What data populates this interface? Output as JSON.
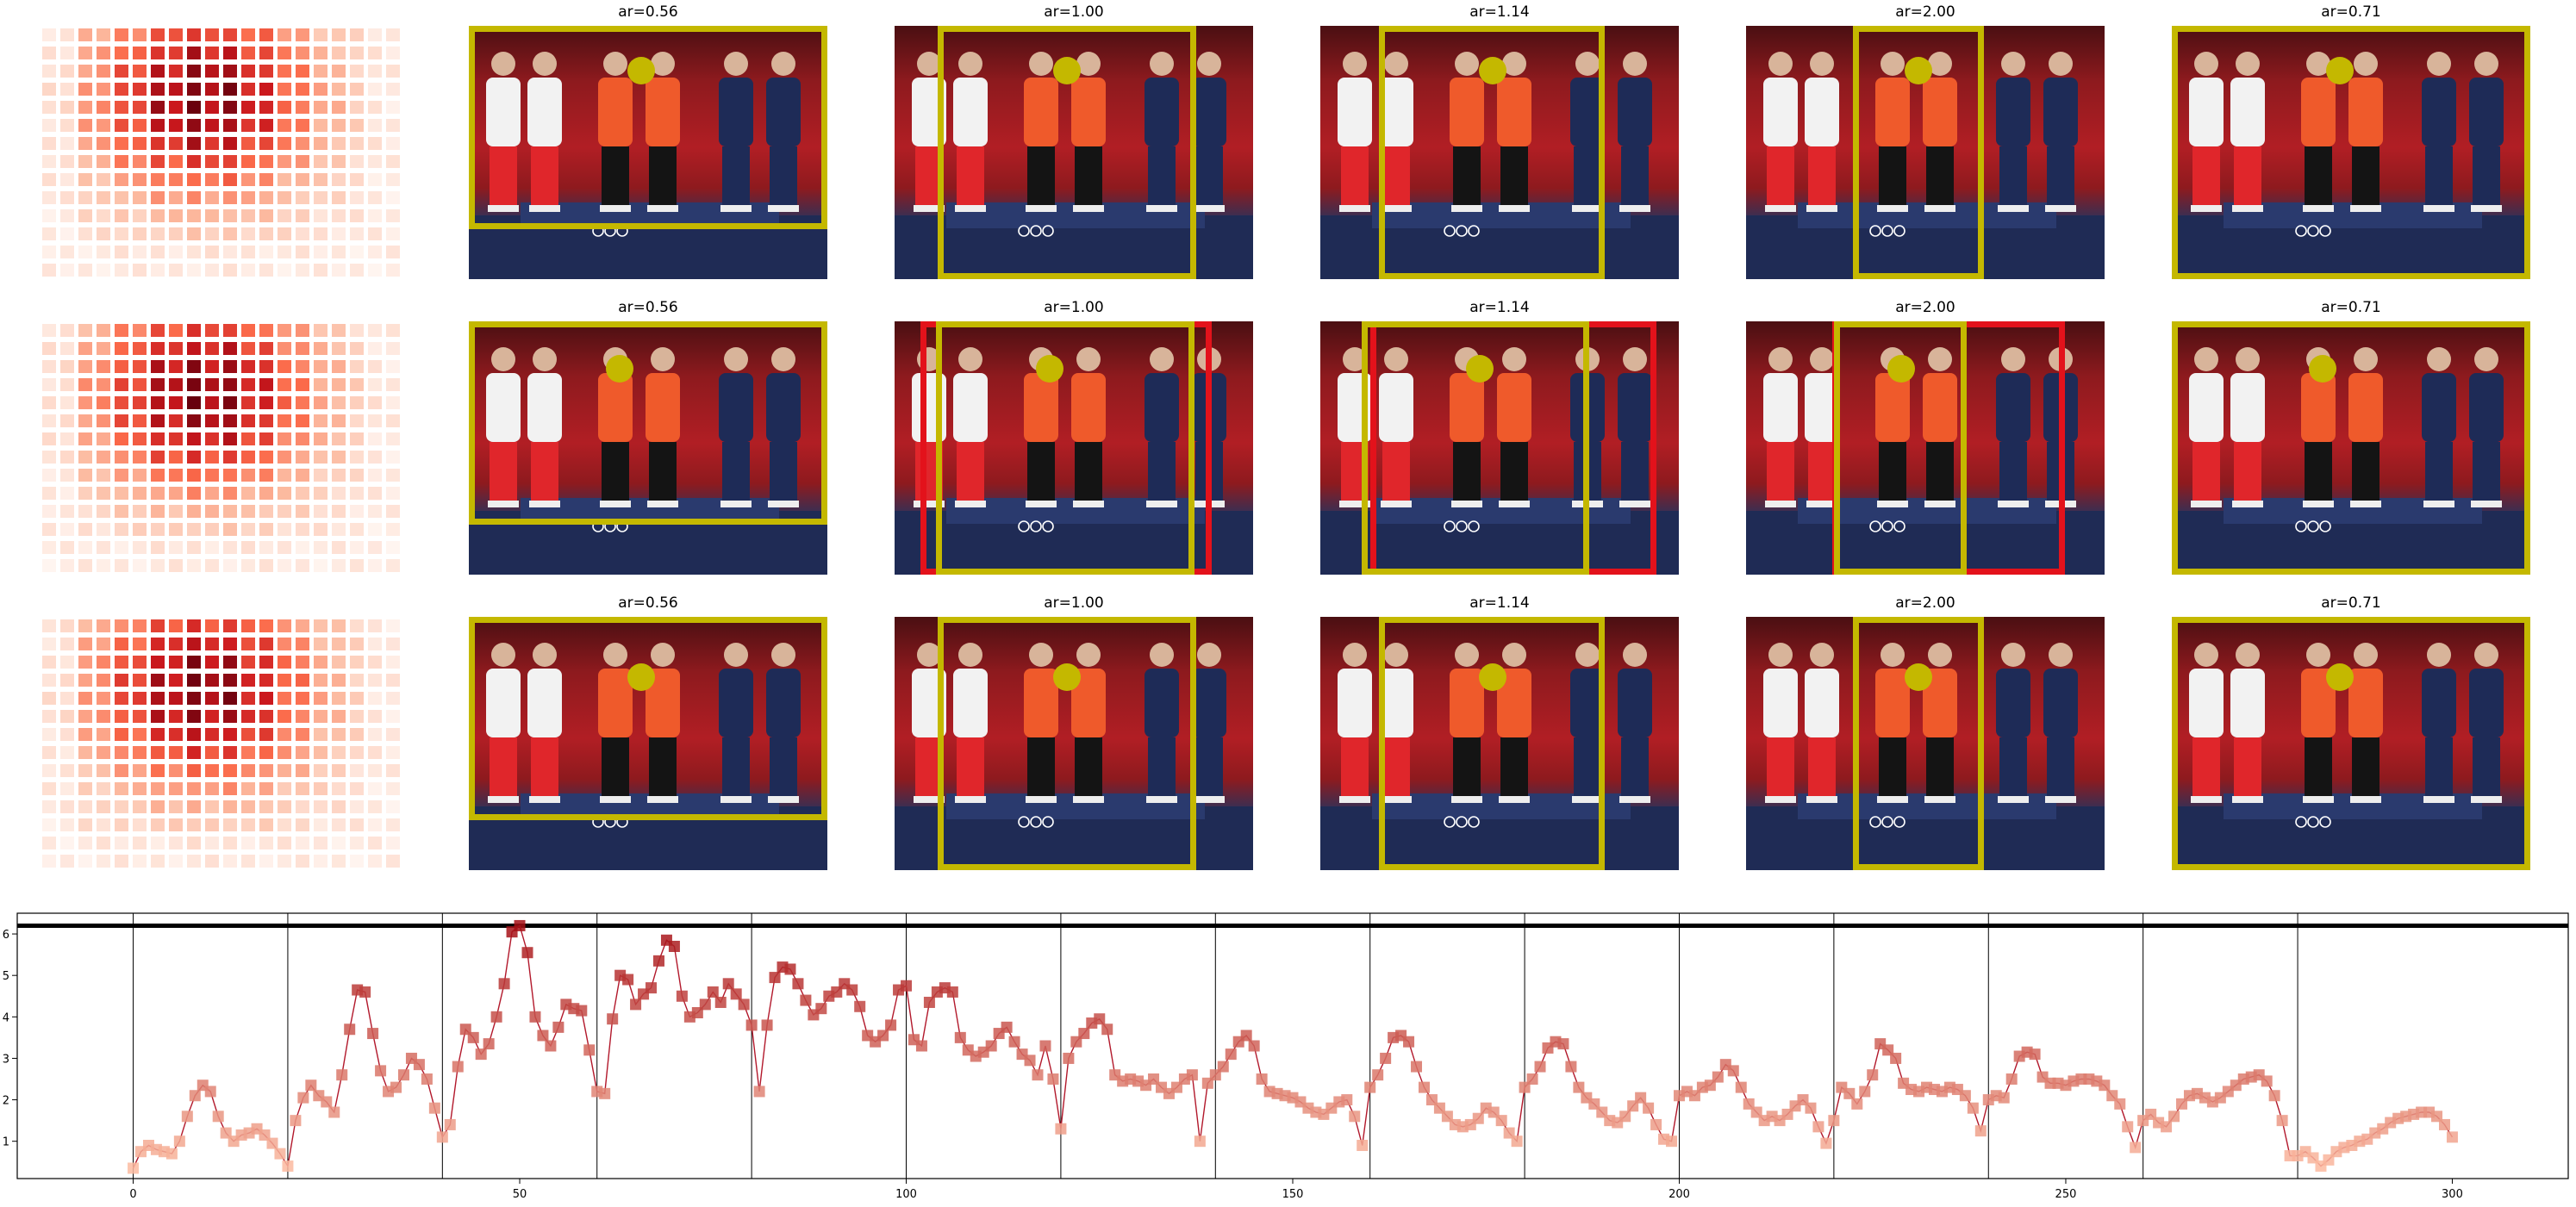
{
  "figure": {
    "rows": [
      {
        "panels": [
          {
            "title": "ar=0.56",
            "boxes": [
              {
                "color": "yellow",
                "aspect_ratio": 0.56
              }
            ]
          },
          {
            "title": "ar=1.00",
            "boxes": [
              {
                "color": "yellow",
                "aspect_ratio": 1.0
              }
            ]
          },
          {
            "title": "ar=1.14",
            "boxes": [
              {
                "color": "yellow",
                "aspect_ratio": 1.14
              }
            ]
          },
          {
            "title": "ar=2.00",
            "boxes": [
              {
                "color": "yellow",
                "aspect_ratio": 2.0
              }
            ]
          },
          {
            "title": "ar=0.71",
            "boxes": [
              {
                "color": "yellow",
                "aspect_ratio": 0.71
              }
            ]
          }
        ]
      },
      {
        "panels": [
          {
            "title": "ar=0.56",
            "boxes": [
              {
                "color": "yellow",
                "aspect_ratio": 0.56
              }
            ]
          },
          {
            "title": "ar=1.00",
            "boxes": [
              {
                "color": "red"
              },
              {
                "color": "yellow",
                "aspect_ratio": 1.0
              }
            ]
          },
          {
            "title": "ar=1.14",
            "boxes": [
              {
                "color": "red"
              },
              {
                "color": "yellow",
                "aspect_ratio": 1.14
              }
            ]
          },
          {
            "title": "ar=2.00",
            "boxes": [
              {
                "color": "red"
              },
              {
                "color": "yellow",
                "aspect_ratio": 2.0
              }
            ]
          },
          {
            "title": "ar=0.71",
            "boxes": [
              {
                "color": "yellow",
                "aspect_ratio": 0.71
              }
            ]
          }
        ]
      },
      {
        "panels": [
          {
            "title": "ar=0.56",
            "boxes": [
              {
                "color": "yellow",
                "aspect_ratio": 0.56
              }
            ]
          },
          {
            "title": "ar=1.00",
            "boxes": [
              {
                "color": "yellow",
                "aspect_ratio": 1.0
              }
            ]
          },
          {
            "title": "ar=1.14",
            "boxes": [
              {
                "color": "yellow",
                "aspect_ratio": 1.14
              }
            ]
          },
          {
            "title": "ar=2.00",
            "boxes": [
              {
                "color": "yellow",
                "aspect_ratio": 2.0
              }
            ]
          },
          {
            "title": "ar=0.71",
            "boxes": [
              {
                "color": "yellow",
                "aspect_ratio": 0.71
              }
            ]
          }
        ]
      }
    ]
  },
  "colors": {
    "box_yellow": "#c4b800",
    "box_red": "#e3121b",
    "line": "#b2182b",
    "marker_high": "#a50f15",
    "marker_low": "#fcbba1",
    "threshold": "#000000"
  },
  "chart_data": {
    "type": "line",
    "title": "",
    "xlabel": "",
    "ylabel": "",
    "xlim": [
      -15,
      315
    ],
    "ylim": [
      0.1,
      6.5
    ],
    "xticks": [
      0,
      50,
      100,
      150,
      200,
      250,
      300
    ],
    "yticks": [
      1,
      2,
      3,
      4,
      5,
      6
    ],
    "threshold_y": 6.2,
    "segment_boundaries_x": [
      0,
      20,
      40,
      60,
      80,
      100,
      120,
      140,
      160,
      180,
      200,
      220,
      240,
      260,
      280
    ],
    "grid": false,
    "legend": "none",
    "series": [
      {
        "x_start": 0,
        "x_step": 1,
        "values": [
          0.35,
          0.75,
          0.9,
          0.8,
          0.75,
          0.7,
          1.0,
          1.6,
          2.1,
          2.35,
          2.2,
          1.6,
          1.2,
          1.0,
          1.15,
          1.2,
          1.3,
          1.15,
          0.95,
          0.7,
          0.4,
          1.5,
          2.05,
          2.35,
          2.1,
          1.95,
          1.7,
          2.6,
          3.7,
          4.65,
          4.6,
          3.6,
          2.7,
          2.2,
          2.3,
          2.6,
          3.0,
          2.85,
          2.5,
          1.8,
          1.1,
          1.4,
          2.8,
          3.7,
          3.5,
          3.1,
          3.35,
          4.0,
          4.8,
          6.05,
          6.2,
          5.55,
          4.0,
          3.55,
          3.3,
          3.75,
          4.3,
          4.2,
          4.15,
          3.2,
          2.2,
          2.15,
          3.95,
          5.0,
          4.9,
          4.3,
          4.55,
          4.7,
          5.35,
          5.85,
          5.7,
          4.5,
          4.0,
          4.1,
          4.3,
          4.6,
          4.35,
          4.8,
          4.55,
          4.3,
          3.8,
          2.2,
          3.8,
          4.95,
          5.2,
          5.15,
          4.8,
          4.4,
          4.05,
          4.2,
          4.5,
          4.6,
          4.8,
          4.65,
          4.25,
          3.55,
          3.4,
          3.55,
          3.8,
          4.65,
          4.75,
          3.45,
          3.3,
          4.35,
          4.6,
          4.7,
          4.6,
          3.5,
          3.2,
          3.05,
          3.15,
          3.3,
          3.6,
          3.75,
          3.4,
          3.1,
          2.95,
          2.6,
          3.3,
          2.5,
          1.3,
          3.0,
          3.4,
          3.6,
          3.85,
          3.95,
          3.7,
          2.6,
          2.45,
          2.5,
          2.45,
          2.35,
          2.5,
          2.3,
          2.15,
          2.3,
          2.5,
          2.6,
          1.0,
          2.4,
          2.6,
          2.8,
          3.1,
          3.4,
          3.55,
          3.3,
          2.5,
          2.2,
          2.15,
          2.1,
          2.05,
          1.95,
          1.8,
          1.7,
          1.65,
          1.8,
          1.95,
          2.0,
          1.6,
          0.9,
          2.3,
          2.6,
          3.0,
          3.5,
          3.55,
          3.4,
          2.8,
          2.3,
          2.0,
          1.8,
          1.6,
          1.4,
          1.35,
          1.4,
          1.55,
          1.8,
          1.7,
          1.5,
          1.2,
          1.0,
          2.3,
          2.5,
          2.8,
          3.25,
          3.4,
          3.35,
          2.8,
          2.3,
          2.05,
          1.9,
          1.7,
          1.5,
          1.45,
          1.6,
          1.85,
          2.05,
          1.8,
          1.4,
          1.05,
          1.0,
          2.1,
          2.2,
          2.1,
          2.3,
          2.35,
          2.55,
          2.85,
          2.7,
          2.3,
          1.9,
          1.7,
          1.5,
          1.6,
          1.5,
          1.65,
          1.85,
          2.0,
          1.8,
          1.35,
          0.95,
          1.5,
          2.3,
          2.15,
          1.9,
          2.2,
          2.6,
          3.35,
          3.2,
          3.0,
          2.4,
          2.25,
          2.2,
          2.3,
          2.25,
          2.2,
          2.3,
          2.25,
          2.1,
          1.8,
          1.25,
          2.0,
          2.1,
          2.05,
          2.5,
          3.05,
          3.15,
          3.1,
          2.55,
          2.4,
          2.4,
          2.35,
          2.45,
          2.5,
          2.5,
          2.45,
          2.35,
          2.1,
          1.9,
          1.35,
          0.85,
          1.5,
          1.65,
          1.45,
          1.35,
          1.6,
          1.9,
          2.1,
          2.15,
          2.05,
          1.95,
          2.05,
          2.2,
          2.35,
          2.5,
          2.55,
          2.6,
          2.45,
          2.1,
          1.5,
          0.65,
          0.65,
          0.75,
          0.6,
          0.4,
          0.55,
          0.75,
          0.85,
          0.9,
          1.0,
          1.05,
          1.2,
          1.3,
          1.45,
          1.55,
          1.6,
          1.65,
          1.7,
          1.7,
          1.6,
          1.4,
          1.1
        ]
      }
    ]
  }
}
